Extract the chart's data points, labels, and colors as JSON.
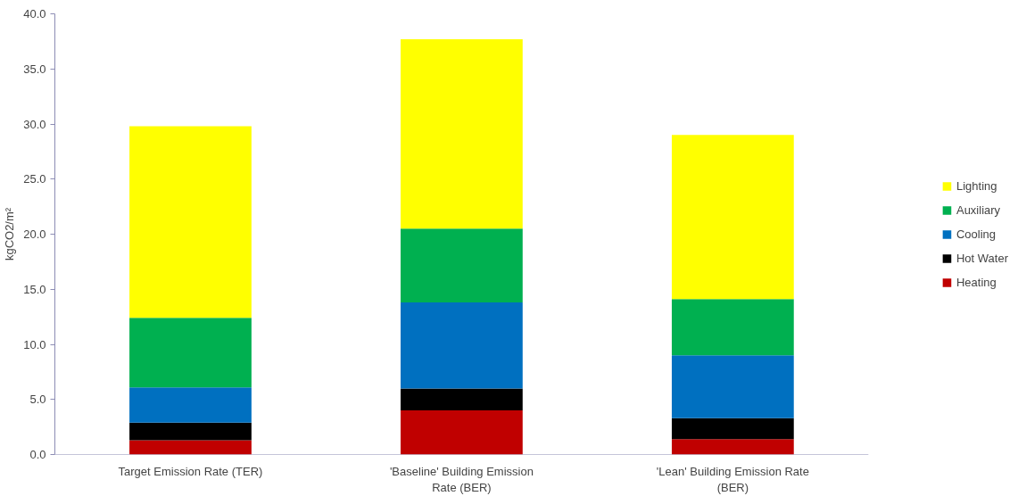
{
  "chart_data": {
    "type": "bar",
    "stacked": true,
    "ylabel": "kgCO2/m²",
    "categories": [
      "Target Emission Rate (TER)",
      "'Baseline' Building Emission Rate (BER)",
      "'Lean' Building Emission Rate (BER)"
    ],
    "series": [
      {
        "name": "Heating",
        "color": "#c00000",
        "values": [
          1.3,
          4.0,
          1.4
        ]
      },
      {
        "name": "Hot Water",
        "color": "#000000",
        "values": [
          1.6,
          2.0,
          1.9
        ]
      },
      {
        "name": "Cooling",
        "color": "#0070c0",
        "values": [
          3.2,
          7.8,
          5.7
        ]
      },
      {
        "name": "Auxiliary",
        "color": "#00b050",
        "values": [
          6.3,
          6.7,
          5.1
        ]
      },
      {
        "name": "Lighting",
        "color": "#ffff00",
        "values": [
          17.4,
          17.2,
          14.9
        ]
      }
    ],
    "ylim": [
      0,
      40
    ],
    "yticks": [
      {
        "value": 0,
        "label": "0.0"
      },
      {
        "value": 5,
        "label": "5.0"
      },
      {
        "value": 10,
        "label": "10.0"
      },
      {
        "value": 15,
        "label": "15.0"
      },
      {
        "value": 20,
        "label": "20.0"
      },
      {
        "value": 25,
        "label": "25.0"
      },
      {
        "value": 30,
        "label": "30.0"
      },
      {
        "value": 35,
        "label": "35.0"
      },
      {
        "value": 40,
        "label": "40.0"
      }
    ],
    "grid": false,
    "legend": "right"
  }
}
